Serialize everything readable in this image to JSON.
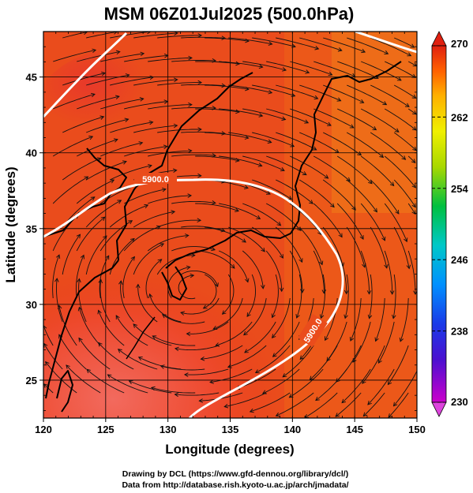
{
  "title": "MSM 06Z01Jul2025 (500.0hPa)",
  "xlabel": "Longitude (degrees)",
  "ylabel": "Latitude  (degrees)",
  "credits": [
    "Drawing by DCL (https://www.gfd-dennou.org/library/dcl/)",
    "Data from http://database.rish.kyoto-u.ac.jp/arch/jmadata/"
  ],
  "map_data": {
    "type": "map",
    "xlim": [
      120,
      150
    ],
    "ylim": [
      22.5,
      48
    ],
    "x_ticks": [
      120,
      125,
      130,
      135,
      140,
      145,
      150
    ],
    "y_ticks": [
      25,
      30,
      35,
      40,
      45
    ],
    "contour_labels": [
      "5900.0",
      "5900.0"
    ],
    "colorbar": {
      "range": [
        230,
        270
      ],
      "ticks": [
        270,
        262,
        254,
        246,
        238,
        230
      ],
      "colors": [
        "#cc00cc",
        "#2020c8",
        "#0088ff",
        "#00c8c8",
        "#00c000",
        "#a8d800",
        "#f0f000",
        "#ffb000",
        "#ff6000",
        "#e02010"
      ]
    }
  }
}
